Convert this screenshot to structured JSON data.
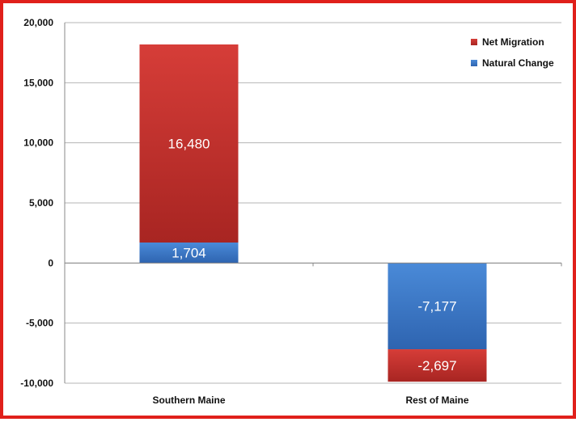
{
  "chart_data": {
    "type": "bar",
    "stacked": true,
    "categories": [
      "Southern Maine",
      "Rest of Maine"
    ],
    "series": [
      {
        "name": "Net Migration",
        "values": [
          16480,
          -2697
        ],
        "labels": [
          "16,480",
          "-2,697"
        ],
        "color": "#c8322f"
      },
      {
        "name": "Natural Change",
        "values": [
          1704,
          -7177
        ],
        "labels": [
          "1,704",
          "-7,177"
        ],
        "color": "#3f7cc9"
      }
    ],
    "stack_order": [
      "Natural Change",
      "Net Migration"
    ],
    "ylim": [
      -10000,
      20000
    ],
    "yticks": [
      -10000,
      -5000,
      0,
      5000,
      10000,
      15000,
      20000
    ],
    "ytick_labels": [
      "-10,000",
      "-5,000",
      "0",
      "5,000",
      "10,000",
      "15,000",
      "20,000"
    ],
    "grid": true,
    "legend_position": "top-right",
    "border_color": "#e0201b"
  }
}
